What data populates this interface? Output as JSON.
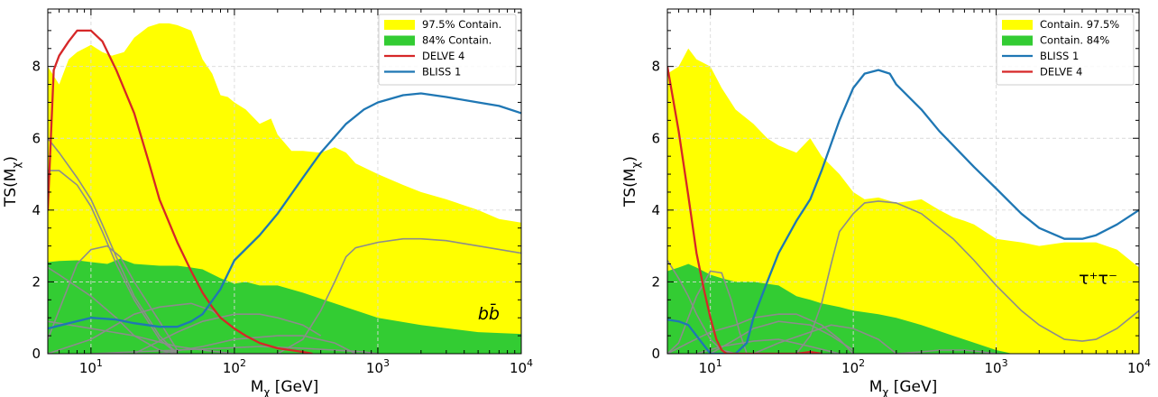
{
  "chart_data": [
    {
      "type": "area",
      "xscale": "log",
      "xlim": [
        5,
        10000
      ],
      "ylim": [
        0,
        9.6
      ],
      "xlabel_base": "M",
      "xlabel_sub": "χ",
      "xlabel_unit": " [GeV]",
      "ylabel_base": "TS(M",
      "ylabel_sub": "χ",
      "ylabel_close": ")",
      "xticks": [
        {
          "value": 10,
          "base": "10",
          "exp": "1"
        },
        {
          "value": 100,
          "base": "10",
          "exp": "2"
        },
        {
          "value": 1000,
          "base": "10",
          "exp": "3"
        },
        {
          "value": 10000,
          "base": "10",
          "exp": "4"
        }
      ],
      "yticks": [
        0,
        2,
        4,
        6,
        8
      ],
      "grid": true,
      "legend_position": "top-right",
      "annotation": "bb̄",
      "legend": [
        {
          "label": "97.5% Contain.",
          "kind": "patch",
          "color": "#ffff00"
        },
        {
          "label": "84% Contain.",
          "kind": "patch",
          "color": "#33cc33"
        },
        {
          "label": "DELVE 4",
          "kind": "line",
          "color": "#d62728"
        },
        {
          "label": "BLISS 1",
          "kind": "line",
          "color": "#1f77b4"
        }
      ],
      "bands": [
        {
          "name": "97.5% Contain.",
          "color": "#ffff00",
          "x": [
            5,
            6,
            7,
            8,
            10,
            12,
            14,
            17,
            20,
            25,
            30,
            35,
            40,
            50,
            60,
            70,
            80,
            90,
            100,
            120,
            150,
            180,
            200,
            250,
            300,
            400,
            500,
            600,
            700,
            1000,
            1500,
            2000,
            3000,
            5000,
            7000,
            10000
          ],
          "y": [
            8.0,
            7.5,
            8.2,
            8.4,
            8.6,
            8.4,
            8.3,
            8.4,
            8.8,
            9.1,
            9.2,
            9.2,
            9.15,
            9.0,
            8.2,
            7.8,
            7.2,
            7.15,
            7.0,
            6.8,
            6.4,
            6.55,
            6.1,
            5.65,
            5.65,
            5.6,
            5.75,
            5.6,
            5.3,
            5.0,
            4.7,
            4.5,
            4.3,
            4.0,
            3.75,
            3.65
          ]
        },
        {
          "name": "84% Contain.",
          "color": "#33cc33",
          "x": [
            5,
            6,
            8,
            10,
            13,
            16,
            20,
            30,
            40,
            50,
            60,
            80,
            100,
            120,
            150,
            200,
            300,
            500,
            1000,
            2000,
            5000,
            10000
          ],
          "y": [
            2.55,
            2.58,
            2.6,
            2.55,
            2.5,
            2.65,
            2.5,
            2.45,
            2.45,
            2.4,
            2.35,
            2.1,
            1.95,
            2.0,
            1.9,
            1.9,
            1.7,
            1.4,
            1.0,
            0.8,
            0.6,
            0.55
          ]
        }
      ],
      "series": [
        {
          "name": "DELVE 4",
          "color": "#d62728",
          "width": 2.3,
          "x": [
            5,
            5.5,
            6,
            7,
            8,
            10,
            12,
            15,
            20,
            25,
            30,
            40,
            50,
            60,
            70,
            80,
            100,
            120,
            150,
            200,
            300,
            350
          ],
          "y": [
            4.0,
            7.9,
            8.3,
            8.7,
            9.0,
            9.0,
            8.7,
            7.9,
            6.7,
            5.4,
            4.3,
            3.1,
            2.3,
            1.7,
            1.3,
            1.0,
            0.7,
            0.5,
            0.3,
            0.15,
            0.05,
            0.0
          ]
        },
        {
          "name": "BLISS 1",
          "color": "#1f77b4",
          "width": 2.3,
          "x": [
            5,
            7,
            10,
            15,
            20,
            30,
            40,
            50,
            60,
            80,
            100,
            150,
            200,
            300,
            400,
            600,
            800,
            1000,
            1500,
            2000,
            3000,
            5000,
            7000,
            10000
          ],
          "y": [
            0.7,
            0.85,
            1.0,
            0.95,
            0.85,
            0.75,
            0.75,
            0.9,
            1.1,
            1.8,
            2.6,
            3.3,
            3.9,
            4.9,
            5.6,
            6.4,
            6.8,
            7.0,
            7.2,
            7.25,
            7.15,
            7.0,
            6.9,
            6.7
          ]
        }
      ],
      "background_curves": [
        {
          "x": [
            5,
            6,
            8,
            10,
            12,
            15,
            20,
            30,
            40
          ],
          "y": [
            6.0,
            5.6,
            4.9,
            4.3,
            3.6,
            2.7,
            1.6,
            0.5,
            0.0
          ]
        },
        {
          "x": [
            5,
            6,
            8,
            10,
            12,
            15,
            20,
            30,
            40
          ],
          "y": [
            5.1,
            5.1,
            4.7,
            4.1,
            3.4,
            2.5,
            1.5,
            0.4,
            0.0
          ]
        },
        {
          "x": [
            5,
            8,
            10,
            13,
            16,
            20,
            30,
            40
          ],
          "y": [
            0.4,
            2.5,
            2.9,
            3.0,
            2.7,
            2.0,
            0.9,
            0.1
          ]
        },
        {
          "x": [
            5,
            6,
            10,
            15,
            20,
            30,
            40
          ],
          "y": [
            2.4,
            2.2,
            1.6,
            1.0,
            0.5,
            0.1,
            0.0
          ]
        },
        {
          "x": [
            5,
            10,
            20,
            30,
            50,
            70,
            100
          ],
          "y": [
            0.0,
            0.4,
            1.1,
            1.3,
            1.4,
            1.2,
            0.7
          ]
        },
        {
          "x": [
            20,
            40,
            60,
            100,
            150,
            200,
            300,
            400
          ],
          "y": [
            0.0,
            0.6,
            0.9,
            1.1,
            1.1,
            1.0,
            0.8,
            0.5
          ]
        },
        {
          "x": [
            5,
            10,
            20,
            40,
            60,
            100,
            150
          ],
          "y": [
            0.9,
            0.7,
            0.5,
            0.2,
            0.1,
            0.0,
            0.0
          ]
        },
        {
          "x": [
            10,
            20,
            40,
            80,
            150,
            300,
            500,
            800,
            1000
          ],
          "y": [
            0.0,
            0.05,
            0.1,
            0.15,
            0.2,
            0.15,
            0.1,
            0.05,
            0.0
          ]
        },
        {
          "x": [
            30,
            60,
            100,
            200,
            300,
            500,
            700
          ],
          "y": [
            0.0,
            0.2,
            0.4,
            0.5,
            0.5,
            0.3,
            0.0
          ]
        },
        {
          "x": [
            150,
            200,
            300,
            400,
            500,
            600,
            700,
            1000,
            1500,
            2000,
            3000,
            5000,
            10000
          ],
          "y": [
            0.0,
            0.0,
            0.4,
            1.2,
            2.0,
            2.7,
            2.95,
            3.1,
            3.2,
            3.2,
            3.15,
            3.0,
            2.8
          ]
        }
      ]
    },
    {
      "type": "area",
      "xscale": "log",
      "xlim": [
        5,
        10000
      ],
      "ylim": [
        0,
        9.6
      ],
      "xlabel_base": "M",
      "xlabel_sub": "χ",
      "xlabel_unit": " [GeV]",
      "ylabel_base": "TS(M",
      "ylabel_sub": "χ",
      "ylabel_close": ")",
      "xticks": [
        {
          "value": 10,
          "base": "10",
          "exp": "1"
        },
        {
          "value": 100,
          "base": "10",
          "exp": "2"
        },
        {
          "value": 1000,
          "base": "10",
          "exp": "3"
        },
        {
          "value": 10000,
          "base": "10",
          "exp": "4"
        }
      ],
      "yticks": [
        0,
        2,
        4,
        6,
        8
      ],
      "grid": true,
      "legend_position": "top-right",
      "annotation": "τ⁺τ⁻",
      "legend": [
        {
          "label": "Contain. 97.5%",
          "kind": "patch",
          "color": "#ffff00"
        },
        {
          "label": "Contain. 84%",
          "kind": "patch",
          "color": "#33cc33"
        },
        {
          "label": "BLISS 1",
          "kind": "line",
          "color": "#1f77b4"
        },
        {
          "label": "DELVE 4",
          "kind": "line",
          "color": "#d62728"
        }
      ],
      "bands": [
        {
          "name": "Contain. 97.5%",
          "color": "#ffff00",
          "x": [
            5,
            6,
            7,
            8,
            10,
            12,
            15,
            20,
            25,
            30,
            40,
            50,
            60,
            80,
            100,
            120,
            150,
            200,
            250,
            300,
            400,
            500,
            600,
            700,
            1000,
            1500,
            2000,
            3000,
            5000,
            7000,
            10000
          ],
          "y": [
            7.8,
            8.0,
            8.5,
            8.2,
            8.0,
            7.4,
            6.8,
            6.4,
            6.0,
            5.8,
            5.6,
            6.0,
            5.5,
            5.0,
            4.5,
            4.3,
            4.35,
            4.2,
            4.25,
            4.3,
            4.0,
            3.8,
            3.7,
            3.6,
            3.2,
            3.1,
            3.0,
            3.1,
            3.1,
            2.9,
            2.4
          ]
        },
        {
          "name": "Contain. 84%",
          "color": "#33cc33",
          "x": [
            5,
            6,
            7,
            8,
            10,
            12,
            15,
            20,
            30,
            40,
            50,
            60,
            80,
            100,
            150,
            200,
            300,
            500,
            1000,
            1300
          ],
          "y": [
            2.3,
            2.4,
            2.5,
            2.4,
            2.2,
            2.1,
            2.0,
            2.0,
            1.9,
            1.6,
            1.5,
            1.4,
            1.3,
            1.2,
            1.1,
            1.0,
            0.8,
            0.5,
            0.1,
            0.0
          ]
        }
      ],
      "series": [
        {
          "name": "BLISS 1",
          "color": "#1f77b4",
          "width": 2.3,
          "x": [
            5,
            6,
            7,
            8,
            10,
            12,
            15,
            18,
            20,
            25,
            30,
            40,
            50,
            60,
            80,
            100,
            120,
            150,
            180,
            200,
            300,
            400,
            500,
            700,
            1000,
            1500,
            2000,
            3000,
            4000,
            5000,
            7000,
            10000
          ],
          "y": [
            0.95,
            0.9,
            0.8,
            0.5,
            0.0,
            0.0,
            0.0,
            0.3,
            1.0,
            2.0,
            2.8,
            3.7,
            4.3,
            5.1,
            6.5,
            7.4,
            7.8,
            7.9,
            7.8,
            7.5,
            6.8,
            6.2,
            5.8,
            5.2,
            4.6,
            3.9,
            3.5,
            3.2,
            3.2,
            3.3,
            3.6,
            4.0
          ]
        },
        {
          "name": "DELVE 4",
          "color": "#d62728",
          "width": 2.3,
          "x": [
            5,
            6,
            7,
            8,
            9,
            10,
            11,
            12,
            13,
            15,
            20,
            30,
            40,
            50,
            60
          ],
          "y": [
            8.0,
            6.2,
            4.4,
            2.8,
            1.8,
            1.0,
            0.4,
            0.1,
            0.0,
            0.0,
            0.0,
            0.0,
            0.0,
            0.05,
            0.0
          ]
        }
      ],
      "background_curves": [
        {
          "x": [
            5,
            6,
            7,
            8,
            10,
            12,
            15
          ],
          "y": [
            2.6,
            2.1,
            1.6,
            1.1,
            0.4,
            0.1,
            0.0
          ]
        },
        {
          "x": [
            5,
            6,
            8,
            10,
            12,
            14,
            16,
            18
          ],
          "y": [
            0.0,
            0.3,
            1.6,
            2.3,
            2.25,
            1.5,
            0.6,
            0.0
          ]
        },
        {
          "x": [
            5,
            7,
            10,
            15,
            20,
            30,
            40,
            60,
            80,
            100
          ],
          "y": [
            0.0,
            0.3,
            0.6,
            0.8,
            1.0,
            1.1,
            1.1,
            0.8,
            0.4,
            0.0
          ]
        },
        {
          "x": [
            10,
            15,
            20,
            30,
            50,
            70,
            100
          ],
          "y": [
            0.0,
            0.4,
            0.7,
            0.9,
            0.8,
            0.5,
            0.1
          ]
        },
        {
          "x": [
            20,
            30,
            50,
            70,
            100,
            150,
            200
          ],
          "y": [
            0.0,
            0.3,
            0.6,
            0.8,
            0.7,
            0.4,
            0.0
          ]
        },
        {
          "x": [
            8,
            12,
            20,
            30,
            50,
            80
          ],
          "y": [
            0.0,
            0.2,
            0.35,
            0.4,
            0.2,
            0.0
          ]
        },
        {
          "x": [
            200,
            300,
            400,
            600,
            800,
            1000
          ],
          "y": [
            0.0,
            0.05,
            0.1,
            0.1,
            0.05,
            0.0
          ]
        },
        {
          "x": [
            40,
            50,
            60,
            70,
            80,
            100,
            120,
            150,
            200,
            300,
            500,
            700,
            1000,
            1500,
            2000,
            3000,
            4000,
            5000,
            7000,
            10000
          ],
          "y": [
            0.0,
            0.5,
            1.4,
            2.5,
            3.4,
            3.9,
            4.2,
            4.25,
            4.2,
            3.9,
            3.2,
            2.6,
            1.9,
            1.2,
            0.8,
            0.4,
            0.35,
            0.4,
            0.7,
            1.2
          ]
        }
      ]
    }
  ]
}
